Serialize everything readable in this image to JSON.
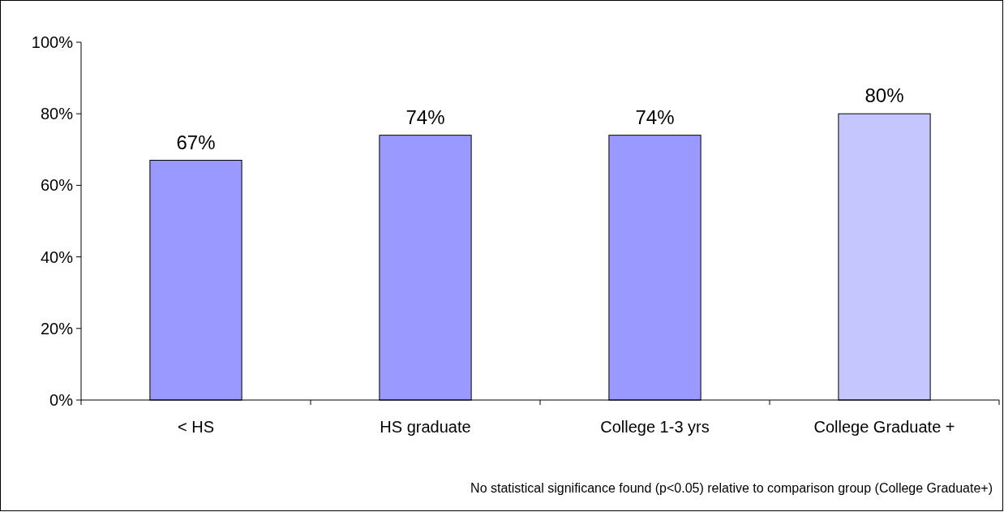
{
  "chart_data": {
    "type": "bar",
    "categories": [
      "< HS",
      "HS graduate",
      "College 1-3 yrs",
      "College Graduate +"
    ],
    "values": [
      67,
      74,
      74,
      80
    ],
    "colors": [
      "#9999ff",
      "#9999ff",
      "#9999ff",
      "#c6c6ff"
    ],
    "ylim": [
      0,
      100
    ],
    "yticks": [
      {
        "value": 0,
        "label": "0%"
      },
      {
        "value": 20,
        "label": "20%"
      },
      {
        "value": 40,
        "label": "40%"
      },
      {
        "value": 60,
        "label": "60%"
      },
      {
        "value": 80,
        "label": "80%"
      },
      {
        "value": 100,
        "label": "100%"
      }
    ],
    "value_labels": [
      "67%",
      "74%",
      "74%",
      "80%"
    ],
    "annotations": [
      "No statistical significance found (p<0.05) relative to comparison group (College Graduate+)"
    ]
  }
}
